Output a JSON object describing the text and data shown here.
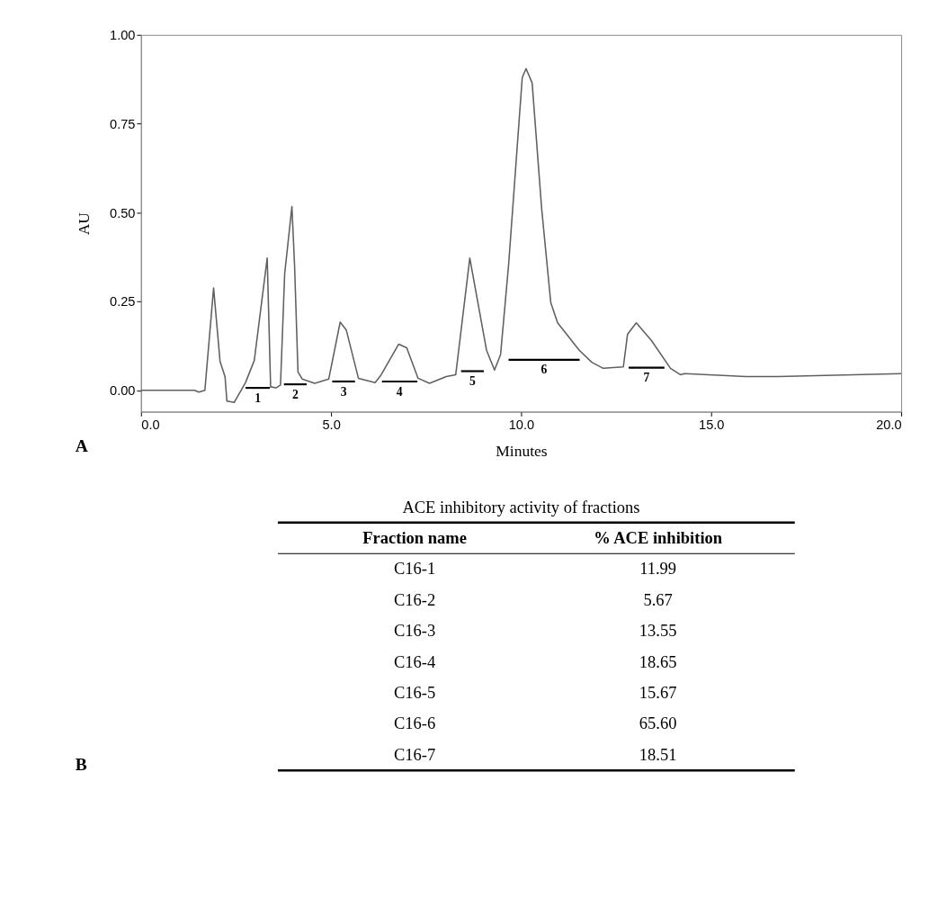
{
  "chart_data": [
    {
      "type": "line",
      "xlabel": "Minutes",
      "ylabel": "AU",
      "xlim": [
        0,
        20
      ],
      "xticks": [
        {
          "value": 0,
          "label": "0.0"
        },
        {
          "value": 5,
          "label": "5.0"
        },
        {
          "value": 10,
          "label": "10.0"
        },
        {
          "value": 15,
          "label": "15.0"
        },
        {
          "value": 20,
          "label": "20.0"
        }
      ],
      "ylim": [
        -0.06,
        1.0
      ],
      "yticks": [
        {
          "value": 0,
          "label": "0.00"
        },
        {
          "value": 0.25,
          "label": "0.25"
        },
        {
          "value": 0.5,
          "label": "0.50"
        },
        {
          "value": 0.75,
          "label": "0.75"
        },
        {
          "value": 1.0,
          "label": "1.00"
        }
      ],
      "grid": false,
      "marker": "none",
      "line_style": "solid",
      "series": [
        {
          "color": "#606060",
          "x": [
            0,
            1.41,
            1.52,
            1.68,
            1.91,
            2.08,
            2.21,
            2.26,
            2.45,
            2.75,
            2.98,
            3.32,
            3.41,
            3.55,
            3.67,
            3.78,
            3.97,
            4.04,
            4.13,
            4.24,
            4.57,
            4.94,
            5.24,
            5.4,
            5.72,
            6.16,
            6.32,
            6.78,
            6.99,
            7.29,
            7.59,
            8.03,
            8.28,
            8.65,
            9.09,
            9.3,
            9.46,
            9.67,
            10.03,
            10.13,
            10.29,
            10.54,
            10.78,
            10.96,
            11.53,
            11.86,
            12.16,
            12.69,
            12.8,
            13.03,
            13.43,
            13.93,
            14.19,
            14.3,
            15.92,
            16.75,
            20.0
          ],
          "values": [
            0,
            0,
            -0.005,
            0,
            0.288,
            0.081,
            0.039,
            -0.03,
            -0.034,
            0.022,
            0.084,
            0.372,
            0.01,
            0.007,
            0.015,
            0.328,
            0.517,
            0.352,
            0.052,
            0.032,
            0.02,
            0.032,
            0.192,
            0.17,
            0.034,
            0.022,
            0.044,
            0.13,
            0.12,
            0.034,
            0.02,
            0.039,
            0.044,
            0.372,
            0.113,
            0.057,
            0.101,
            0.352,
            0.88,
            0.905,
            0.865,
            0.512,
            0.247,
            0.19,
            0.113,
            0.079,
            0.062,
            0.066,
            0.158,
            0.19,
            0.14,
            0.062,
            0.044,
            0.047,
            0.039,
            0.039,
            0.047
          ]
        },
        {
          "color": "#000000",
          "x": [
            2.75,
            3.39
          ],
          "values": [
            0.007,
            0.007
          ]
        },
        {
          "color": "#000000",
          "x": [
            3.76,
            4.36
          ],
          "values": [
            0.017,
            0.017
          ]
        },
        {
          "color": "#000000",
          "x": [
            5.03,
            5.63
          ],
          "values": [
            0.025,
            0.025
          ]
        },
        {
          "color": "#000000",
          "x": [
            6.34,
            7.27
          ],
          "values": [
            0.025,
            0.025
          ]
        },
        {
          "color": "#000000",
          "x": [
            8.42,
            9.02
          ],
          "values": [
            0.054,
            0.054
          ]
        },
        {
          "color": "#000000",
          "x": [
            9.67,
            11.54
          ],
          "values": [
            0.086,
            0.086
          ]
        },
        {
          "color": "#000000",
          "x": [
            12.83,
            13.77
          ],
          "values": [
            0.064,
            0.064
          ]
        }
      ],
      "annotations": [
        "A",
        {
          "text": "1",
          "x": 3.07,
          "y": 0.007
        },
        {
          "text": "2",
          "x": 4.06,
          "y": 0.017
        },
        {
          "text": "3",
          "x": 5.33,
          "y": 0.025
        },
        {
          "text": "4",
          "x": 6.8,
          "y": 0.025
        },
        {
          "text": "5",
          "x": 8.72,
          "y": 0.054
        },
        {
          "text": "6",
          "x": 10.6,
          "y": 0.086
        },
        {
          "text": "7",
          "x": 13.3,
          "y": 0.064
        }
      ]
    },
    {
      "type": "other",
      "title": "ACE inhibitory activity of fractions",
      "xlabel": "Fraction name",
      "ylabel": "% ACE inhibition",
      "categories": [
        "C16-1",
        "C16-2",
        "C16-3",
        "C16-4",
        "C16-5",
        "C16-6",
        "C16-7"
      ],
      "value_labels": [
        "11.99",
        "5.67",
        "13.55",
        "18.65",
        "15.67",
        "65.60",
        "18.51"
      ],
      "annotations": [
        "B"
      ]
    }
  ]
}
